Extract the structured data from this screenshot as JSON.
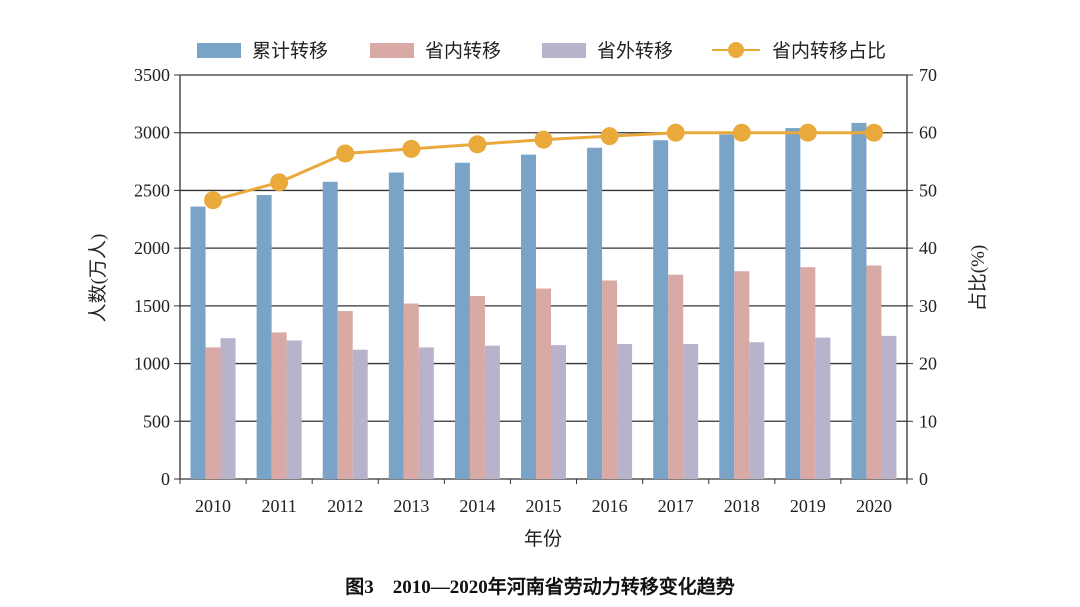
{
  "chart_data": {
    "type": "bar",
    "title": "",
    "caption": "图3　2010—2020年河南省劳动力转移变化趋势",
    "xlabel": "年份",
    "ylabel": "人数(万人)",
    "y2label": "占比(%)",
    "ylim": [
      0,
      3500
    ],
    "y2lim": [
      0,
      70
    ],
    "yticks": [
      0,
      500,
      1000,
      1500,
      2000,
      2500,
      3000,
      3500
    ],
    "y2ticks": [
      0,
      10,
      20,
      30,
      40,
      50,
      60,
      70
    ],
    "grid": true,
    "legend": "top",
    "categories": [
      "2010",
      "2011",
      "2012",
      "2013",
      "2014",
      "2015",
      "2016",
      "2017",
      "2018",
      "2019",
      "2020"
    ],
    "series": [
      {
        "name": "累计转移",
        "type": "bar",
        "axis": "left",
        "color": "#7aa3c8",
        "values": [
          2360,
          2460,
          2575,
          2655,
          2740,
          2810,
          2870,
          2935,
          2985,
          3040,
          3085
        ]
      },
      {
        "name": "省内转移",
        "type": "bar",
        "axis": "left",
        "color": "#d9a9a6",
        "values": [
          1140,
          1270,
          1455,
          1520,
          1585,
          1650,
          1720,
          1770,
          1800,
          1835,
          1850
        ]
      },
      {
        "name": "省外转移",
        "type": "bar",
        "axis": "left",
        "color": "#b8b2cb",
        "values": [
          1220,
          1200,
          1120,
          1140,
          1155,
          1160,
          1170,
          1170,
          1185,
          1225,
          1240
        ]
      },
      {
        "name": "省内转移占比",
        "type": "line",
        "axis": "right",
        "color": "#eaaa3b",
        "values": [
          48.3,
          51.4,
          56.4,
          57.2,
          58.0,
          58.8,
          59.4,
          60.0,
          60.0,
          60.0,
          60.0
        ]
      }
    ]
  }
}
